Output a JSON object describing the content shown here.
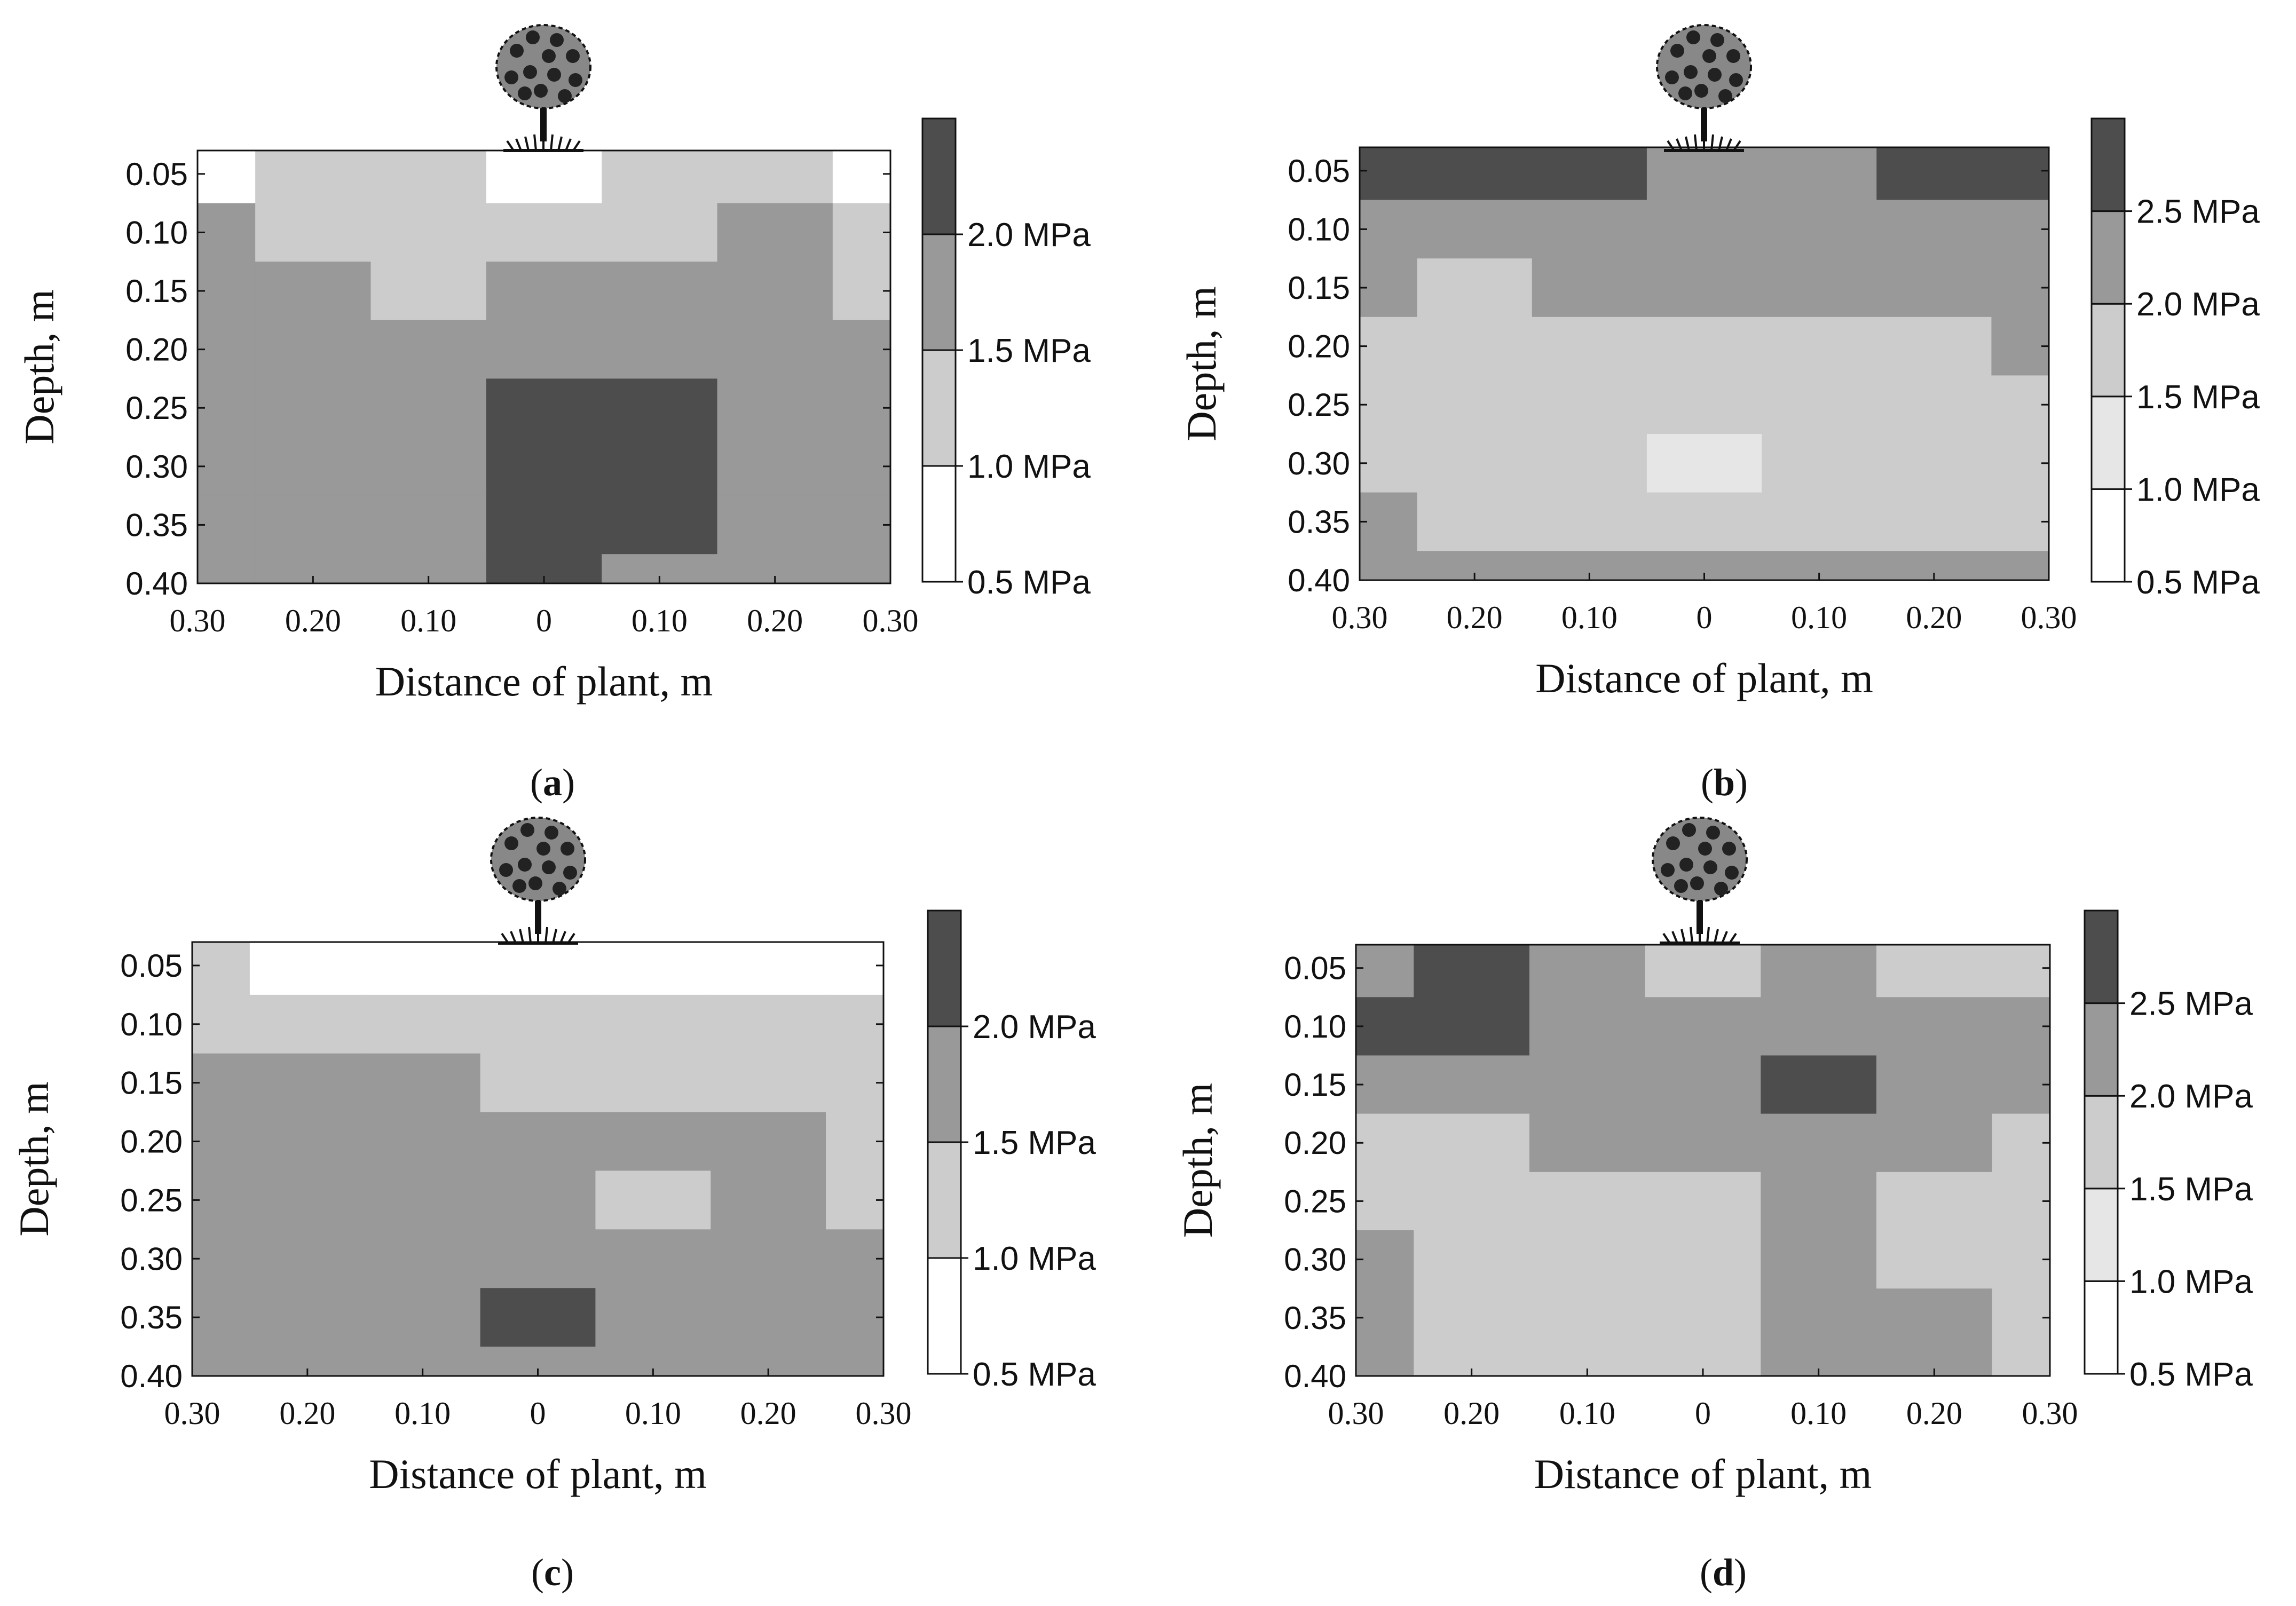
{
  "chart_data": [
    {
      "type": "heatmap",
      "panel_label": "a",
      "xlabel": "Distance of plant, m",
      "ylabel": "Depth, m",
      "x_ticks": [
        "0.30",
        "0.20",
        "0.10",
        "0",
        "0.10",
        "0.20",
        "0.30"
      ],
      "y_ticks": [
        "0.05",
        "0.10",
        "0.15",
        "0.20",
        "0.25",
        "0.30",
        "0.35",
        "0.40"
      ],
      "x_values": [
        -0.3,
        -0.2,
        -0.1,
        0,
        0.1,
        0.2,
        0.3
      ],
      "y_values": [
        0.05,
        0.1,
        0.15,
        0.2,
        0.25,
        0.3,
        0.35,
        0.4
      ],
      "xlim": [
        -0.3,
        0.3
      ],
      "ylim": [
        0.03,
        0.4
      ],
      "legend_levels": [
        "0.5 MPa",
        "1.0 MPa",
        "1.5 MPa",
        "2.0 MPa"
      ],
      "level_values": [
        0.5,
        1.0,
        1.5,
        2.0,
        2.5
      ],
      "level_colors": [
        "#ffffff",
        "#cccccc",
        "#999999",
        "#4d4d4d"
      ],
      "values": [
        [
          0.8,
          1.3,
          1.3,
          0.9,
          1.3,
          1.3,
          0.9
        ],
        [
          1.6,
          1.3,
          1.3,
          1.3,
          1.3,
          1.6,
          1.3
        ],
        [
          1.6,
          1.6,
          1.3,
          1.6,
          1.6,
          1.6,
          1.3
        ],
        [
          1.6,
          1.6,
          1.6,
          1.6,
          1.6,
          1.6,
          1.6
        ],
        [
          1.6,
          1.6,
          1.6,
          2.2,
          2.2,
          1.6,
          1.6
        ],
        [
          1.6,
          1.6,
          1.7,
          2.2,
          2.2,
          1.6,
          1.6
        ],
        [
          1.6,
          1.6,
          1.6,
          2.2,
          2.2,
          1.6,
          1.6
        ],
        [
          1.6,
          1.6,
          1.6,
          2.2,
          1.6,
          1.6,
          1.6
        ]
      ]
    },
    {
      "type": "heatmap",
      "panel_label": "b",
      "xlabel": "Distance of plant, m",
      "ylabel": "Depth, m",
      "x_ticks": [
        "0.30",
        "0.20",
        "0.10",
        "0",
        "0.10",
        "0.20",
        "0.30"
      ],
      "y_ticks": [
        "0.05",
        "0.10",
        "0.15",
        "0.20",
        "0.25",
        "0.30",
        "0.35",
        "0.40"
      ],
      "x_values": [
        -0.3,
        -0.2,
        -0.1,
        0,
        0.1,
        0.2,
        0.3
      ],
      "y_values": [
        0.05,
        0.1,
        0.15,
        0.2,
        0.25,
        0.3,
        0.35,
        0.4
      ],
      "xlim": [
        -0.3,
        0.3
      ],
      "ylim": [
        0.03,
        0.4
      ],
      "legend_levels": [
        "0.5 MPa",
        "1.0 MPa",
        "1.5 MPa",
        "2.0 MPa",
        "2.5 MPa"
      ],
      "level_values": [
        0.5,
        1.0,
        1.5,
        2.0,
        2.5,
        3.0
      ],
      "level_colors": [
        "#ffffff",
        "#e6e6e6",
        "#cccccc",
        "#999999",
        "#4d4d4d"
      ],
      "values": [
        [
          2.7,
          2.7,
          2.7,
          2.2,
          2.2,
          2.7,
          2.7
        ],
        [
          2.2,
          2.2,
          2.2,
          2.2,
          2.2,
          2.2,
          2.2
        ],
        [
          2.2,
          1.8,
          2.2,
          2.2,
          2.2,
          2.2,
          2.2
        ],
        [
          1.8,
          1.8,
          1.8,
          1.8,
          1.8,
          1.8,
          2.2
        ],
        [
          1.8,
          1.8,
          1.8,
          1.8,
          1.8,
          1.8,
          1.8
        ],
        [
          1.8,
          1.8,
          1.8,
          1.3,
          1.8,
          1.8,
          1.8
        ],
        [
          2.2,
          1.8,
          1.8,
          1.8,
          1.8,
          1.8,
          1.8
        ],
        [
          2.2,
          2.2,
          2.2,
          2.2,
          2.2,
          2.2,
          2.2
        ]
      ]
    },
    {
      "type": "heatmap",
      "panel_label": "c",
      "xlabel": "Distance of plant, m",
      "ylabel": "Depth, m",
      "x_ticks": [
        "0.30",
        "0.20",
        "0.10",
        "0",
        "0.10",
        "0.20",
        "0.30"
      ],
      "y_ticks": [
        "0.05",
        "0.10",
        "0.15",
        "0.20",
        "0.25",
        "0.30",
        "0.35",
        "0.40"
      ],
      "x_values": [
        -0.3,
        -0.2,
        -0.1,
        0,
        0.1,
        0.2,
        0.3
      ],
      "y_values": [
        0.05,
        0.1,
        0.15,
        0.2,
        0.25,
        0.3,
        0.35,
        0.4
      ],
      "xlim": [
        -0.3,
        0.3
      ],
      "ylim": [
        0.03,
        0.4
      ],
      "legend_levels": [
        "0.5 MPa",
        "1.0 MPa",
        "1.5 MPa",
        "2.0 MPa"
      ],
      "level_values": [
        0.5,
        1.0,
        1.5,
        2.0,
        2.5
      ],
      "level_colors": [
        "#ffffff",
        "#cccccc",
        "#999999",
        "#4d4d4d"
      ],
      "values": [
        [
          1.3,
          0.8,
          0.8,
          0.8,
          0.8,
          0.8,
          0.8
        ],
        [
          1.3,
          1.3,
          1.3,
          1.3,
          1.3,
          1.3,
          1.3
        ],
        [
          1.6,
          1.6,
          1.6,
          1.3,
          1.3,
          1.3,
          1.3
        ],
        [
          1.6,
          1.6,
          1.6,
          1.6,
          1.6,
          1.6,
          1.3
        ],
        [
          1.6,
          1.6,
          1.6,
          1.6,
          1.3,
          1.6,
          1.3
        ],
        [
          1.6,
          1.6,
          1.6,
          1.6,
          1.6,
          1.6,
          1.6
        ],
        [
          1.6,
          1.6,
          1.6,
          2.2,
          1.6,
          1.6,
          1.6
        ],
        [
          1.6,
          1.6,
          1.6,
          1.6,
          1.6,
          1.6,
          1.6
        ]
      ]
    },
    {
      "type": "heatmap",
      "panel_label": "d",
      "xlabel": "Distance of plant, m",
      "ylabel": "Depth, m",
      "x_ticks": [
        "0.30",
        "0.20",
        "0.10",
        "0",
        "0.10",
        "0.20",
        "0.30"
      ],
      "y_ticks": [
        "0.05",
        "0.10",
        "0.15",
        "0.20",
        "0.25",
        "0.30",
        "0.35",
        "0.40"
      ],
      "x_values": [
        -0.3,
        -0.2,
        -0.1,
        0,
        0.1,
        0.2,
        0.3
      ],
      "y_values": [
        0.05,
        0.1,
        0.15,
        0.2,
        0.25,
        0.3,
        0.35,
        0.4
      ],
      "xlim": [
        -0.3,
        0.3
      ],
      "ylim": [
        0.03,
        0.4
      ],
      "legend_levels": [
        "0.5 MPa",
        "1.0 MPa",
        "1.5 MPa",
        "2.0 MPa",
        "2.5 MPa"
      ],
      "level_values": [
        0.5,
        1.0,
        1.5,
        2.0,
        2.5,
        3.0
      ],
      "level_colors": [
        "#ffffff",
        "#e6e6e6",
        "#cccccc",
        "#999999",
        "#4d4d4d"
      ],
      "values": [
        [
          2.2,
          2.7,
          2.2,
          1.8,
          2.2,
          1.8,
          1.8
        ],
        [
          2.7,
          2.7,
          2.2,
          2.2,
          2.2,
          2.2,
          2.2
        ],
        [
          2.2,
          2.2,
          2.2,
          2.2,
          2.7,
          2.2,
          2.2
        ],
        [
          1.8,
          1.8,
          2.2,
          2.2,
          2.2,
          2.2,
          1.8
        ],
        [
          1.8,
          1.8,
          1.8,
          1.8,
          2.2,
          1.8,
          1.8
        ],
        [
          2.2,
          1.8,
          1.8,
          1.8,
          2.2,
          1.8,
          1.8
        ],
        [
          2.2,
          1.8,
          1.8,
          1.8,
          2.2,
          2.2,
          1.8
        ],
        [
          2.2,
          1.8,
          1.8,
          1.8,
          2.2,
          2.2,
          1.8
        ]
      ]
    }
  ]
}
